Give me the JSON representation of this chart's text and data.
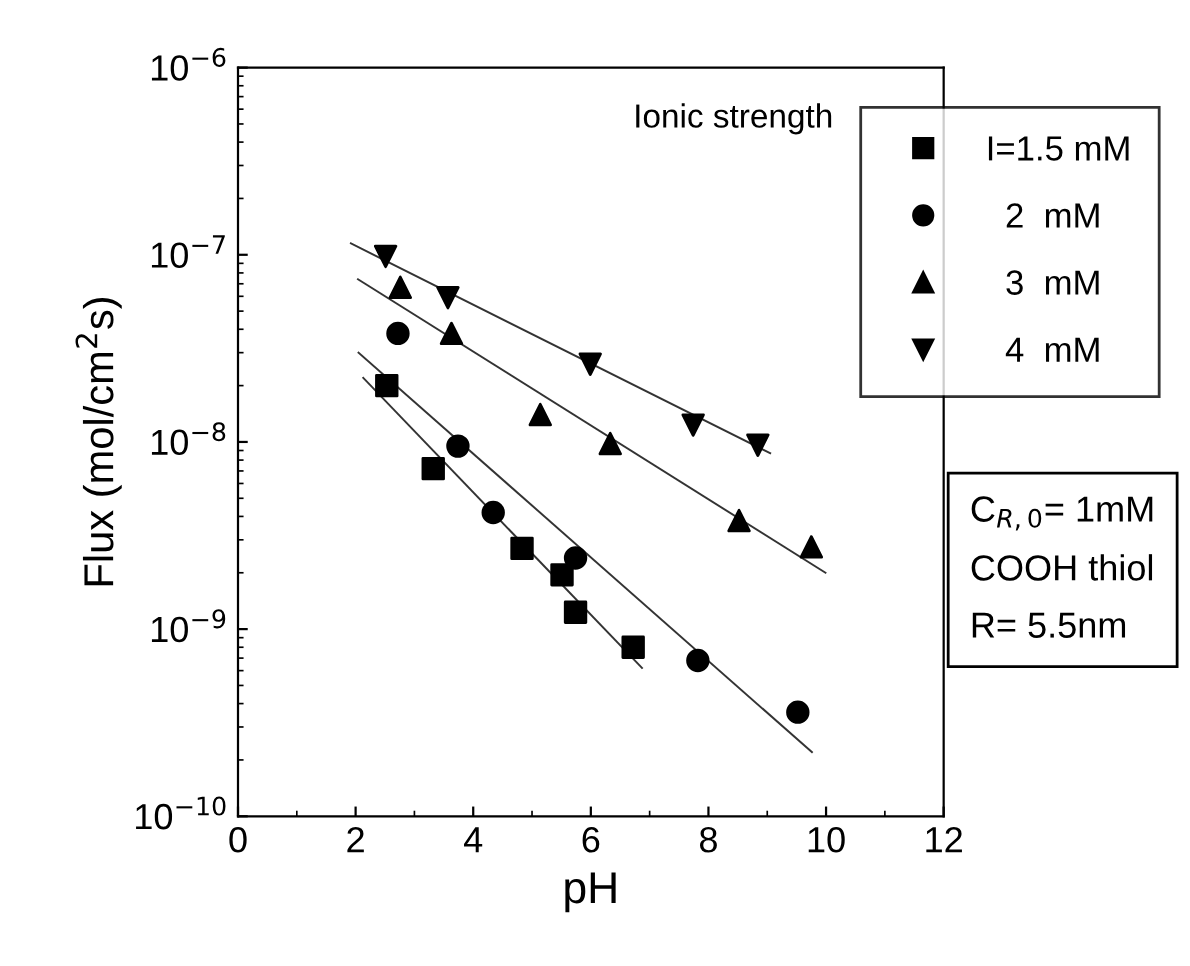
{
  "chart_data": {
    "type": "scatter",
    "xlabel": "pH",
    "ylabel": "Flux (mol/cm$^{2}$s)",
    "legend_title": "Ionic strength",
    "log": "y",
    "xlim": [
      0,
      12
    ],
    "xticks": [
      0,
      2,
      4,
      6,
      8,
      10,
      12
    ],
    "ylim": [
      1e-10,
      1e-06
    ],
    "yticks": [
      {
        "value": 1e-10,
        "label": "10$^{−10}$"
      },
      {
        "value": 1e-09,
        "label": "10$^{−9}$"
      },
      {
        "value": 1e-08,
        "label": "10$^{−8}$"
      },
      {
        "value": 1e-07,
        "label": "10$^{−7}$"
      },
      {
        "value": 1e-06,
        "label": "10$^{−6}$"
      }
    ],
    "grid": false,
    "legend": "top right",
    "series": [
      {
        "name": "I=1.5 mM",
        "color": "#000000",
        "marker": "square",
        "x": [
          2.53,
          3.32,
          4.83,
          5.51,
          5.74,
          6.72
        ],
        "values": [
          2e-08,
          7.2e-09,
          2.7e-09,
          1.95e-09,
          1.23e-09,
          8e-10
        ]
      },
      {
        "name": "  2  mM",
        "color": "#000000",
        "marker": "circle",
        "x": [
          2.72,
          3.74,
          4.34,
          5.74,
          7.82,
          9.52
        ],
        "values": [
          3.8e-08,
          9.5e-09,
          4.2e-09,
          2.4e-09,
          6.8e-10,
          3.6e-10
        ]
      },
      {
        "name": "  3  mM",
        "color": "#000000",
        "marker": "triangle",
        "x": [
          2.76,
          3.63,
          5.14,
          6.33,
          8.52,
          9.75
        ],
        "values": [
          6.7e-08,
          3.8e-08,
          1.4e-08,
          9.8e-09,
          3.8e-09,
          2.75e-09
        ]
      },
      {
        "name": "  4  mM",
        "color": "#000000",
        "marker": "triangle_down",
        "x": [
          2.51,
          3.57,
          5.99,
          7.74,
          8.84
        ],
        "values": [
          9.8e-08,
          5.9e-08,
          2.6e-08,
          1.23e-08,
          9.6e-09
        ]
      },
      {
        "type": "line",
        "color": "#333333",
        "marker": "none",
        "x": [
          2.13,
          6.87
        ],
        "values": [
          2.2e-08,
          6.2e-10
        ]
      },
      {
        "type": "line",
        "color": "#333333",
        "marker": "none",
        "x": [
          2.05,
          9.76
        ],
        "values": [
          3e-08,
          2.2e-10
        ]
      },
      {
        "type": "line",
        "color": "#333333",
        "marker": "none",
        "x": [
          2.04,
          9.99
        ],
        "values": [
          7.4e-08,
          2e-09
        ]
      },
      {
        "type": "line",
        "color": "#333333",
        "marker": "none",
        "x": [
          1.92,
          9.05
        ],
        "values": [
          1.15e-07,
          8.7e-09
        ]
      }
    ],
    "annotations": [
      "C$_{R,0}$= 1mM",
      "COOH thiol",
      "R= 5.5nm"
    ]
  }
}
